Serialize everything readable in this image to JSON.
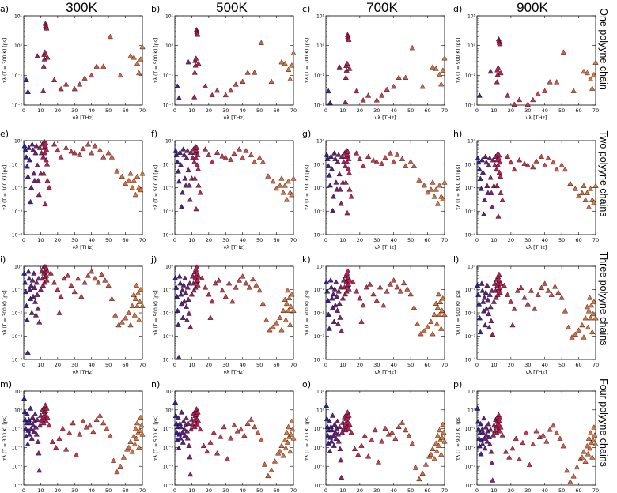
{
  "figure": {
    "column_titles": [
      "300K",
      "500K",
      "700K",
      "900K"
    ],
    "row_titles": [
      "One polyyne chain",
      "Two polyyne chains",
      "Three polyyne chains",
      "Four polyyne chains"
    ],
    "xlabel": "νλ [THz]",
    "xticks": [
      0,
      10,
      20,
      30,
      40,
      50,
      60,
      70
    ],
    "ytick_labels": {
      "row1": [
        "10⁻²",
        "10⁻¹",
        "10⁰",
        "10¹"
      ],
      "other": [
        "10⁻⁴",
        "10⁻³",
        "10⁻²",
        "10⁻¹",
        "10⁰"
      ],
      "row4": [
        "10⁻⁴",
        "10⁻³",
        "10⁻²",
        "10⁻¹",
        "10⁰",
        "10¹"
      ]
    },
    "colors": {
      "low": "#2c1fa0",
      "mid": "#c4204e",
      "high": "#e07a3a",
      "edge": "#000000"
    }
  },
  "chart_data": [
    {
      "panel": "a",
      "type": "scatter",
      "title": "a)",
      "ylabel": "τλ (T = 300 K) [ps]",
      "xlim": [
        0,
        70
      ],
      "ylog_exp": [
        -2,
        1
      ],
      "temperature": 300,
      "n_chains": 1
    },
    {
      "panel": "b",
      "type": "scatter",
      "title": "b)",
      "ylabel": "τλ (T = 500 K) [ps]",
      "xlim": [
        0,
        70
      ],
      "ylog_exp": [
        -2,
        1
      ],
      "temperature": 500,
      "n_chains": 1
    },
    {
      "panel": "c",
      "type": "scatter",
      "title": "c)",
      "ylabel": "τλ (T = 700 K) [ps]",
      "xlim": [
        0,
        70
      ],
      "ylog_exp": [
        -2,
        1
      ],
      "temperature": 700,
      "n_chains": 1
    },
    {
      "panel": "d",
      "type": "scatter",
      "title": "d)",
      "ylabel": "τλ (T = 900 K) [ps]",
      "xlim": [
        0,
        70
      ],
      "ylog_exp": [
        -2,
        1
      ],
      "temperature": 900,
      "n_chains": 1
    },
    {
      "panel": "e",
      "type": "scatter",
      "title": "e)",
      "ylabel": "τλ (T = 300 K) [ps]",
      "xlim": [
        0,
        70
      ],
      "ylog_exp": [
        -4,
        0
      ],
      "temperature": 300,
      "n_chains": 2
    },
    {
      "panel": "f",
      "type": "scatter",
      "title": "f)",
      "ylabel": "τλ (T = 500 K) [ps]",
      "xlim": [
        0,
        70
      ],
      "ylog_exp": [
        -4,
        0
      ],
      "temperature": 500,
      "n_chains": 2
    },
    {
      "panel": "g",
      "type": "scatter",
      "title": "g)",
      "ylabel": "τλ (T = 700 K) [ps]",
      "xlim": [
        0,
        70
      ],
      "ylog_exp": [
        -4,
        0
      ],
      "temperature": 700,
      "n_chains": 2
    },
    {
      "panel": "h",
      "type": "scatter",
      "title": "h)",
      "ylabel": "τλ (T = 900 K) [ps]",
      "xlim": [
        0,
        70
      ],
      "ylog_exp": [
        -4,
        0
      ],
      "temperature": 900,
      "n_chains": 2
    },
    {
      "panel": "i",
      "type": "scatter",
      "title": "i)",
      "ylabel": "τλ (T = 300 K) [ps]",
      "xlim": [
        0,
        70
      ],
      "ylog_exp": [
        -4,
        0
      ],
      "temperature": 300,
      "n_chains": 3
    },
    {
      "panel": "j",
      "type": "scatter",
      "title": "j)",
      "ylabel": "τλ (T = 500 K) [ps]",
      "xlim": [
        0,
        70
      ],
      "ylog_exp": [
        -4,
        0
      ],
      "temperature": 500,
      "n_chains": 3
    },
    {
      "panel": "k",
      "type": "scatter",
      "title": "k)",
      "ylabel": "τλ (T = 700 K) [ps]",
      "xlim": [
        0,
        70
      ],
      "ylog_exp": [
        -4,
        0
      ],
      "temperature": 700,
      "n_chains": 3
    },
    {
      "panel": "l",
      "type": "scatter",
      "title": "l)",
      "ylabel": "τλ (T = 900 K) [ps]",
      "xlim": [
        0,
        70
      ],
      "ylog_exp": [
        -4,
        0
      ],
      "temperature": 900,
      "n_chains": 3
    },
    {
      "panel": "m",
      "type": "scatter",
      "title": "m)",
      "ylabel": "τλ (T = 300 K) [ps]",
      "xlim": [
        0,
        70
      ],
      "ylog_exp": [
        -4,
        1
      ],
      "temperature": 300,
      "n_chains": 4
    },
    {
      "panel": "n",
      "type": "scatter",
      "title": "n)",
      "ylabel": "τλ (T = 500 K) [ps]",
      "xlim": [
        0,
        70
      ],
      "ylog_exp": [
        -4,
        1
      ],
      "temperature": 500,
      "n_chains": 4
    },
    {
      "panel": "o",
      "type": "scatter",
      "title": "o)",
      "ylabel": "τλ (T = 700 K) [ps]",
      "xlim": [
        0,
        70
      ],
      "ylog_exp": [
        -4,
        1
      ],
      "temperature": 700,
      "n_chains": 4
    },
    {
      "panel": "p",
      "type": "scatter",
      "title": "p)",
      "ylabel": "τλ (T = 900 K) [ps]",
      "xlim": [
        0,
        70
      ],
      "ylog_exp": [
        -4,
        1
      ],
      "temperature": 900,
      "n_chains": 4
    }
  ],
  "base_points": {
    "one_chain": [
      [
        1.5,
        0.07
      ],
      [
        2.5,
        0.028
      ],
      [
        8,
        0.45
      ],
      [
        11.5,
        0.03
      ],
      [
        11.8,
        0.2
      ],
      [
        12,
        0.5
      ],
      [
        12.2,
        0.35
      ],
      [
        12.5,
        0.6
      ],
      [
        12.8,
        5.5
      ],
      [
        13,
        4.8
      ],
      [
        13.2,
        4.2
      ],
      [
        13.5,
        3.8
      ],
      [
        14,
        0.4
      ],
      [
        18,
        0.07
      ],
      [
        22,
        0.035
      ],
      [
        25,
        0.05
      ],
      [
        30,
        0.035
      ],
      [
        33,
        0.05
      ],
      [
        36,
        0.08
      ],
      [
        40,
        0.1
      ],
      [
        43,
        0.2
      ],
      [
        47,
        0.2
      ],
      [
        51,
        2.0
      ],
      [
        57,
        0.1
      ],
      [
        63,
        0.45
      ],
      [
        65,
        0.4
      ],
      [
        67,
        0.25
      ],
      [
        68,
        0.12
      ],
      [
        69,
        0.35
      ],
      [
        70,
        0.9
      ]
    ],
    "two_chains": [
      [
        0.5,
        0.6
      ],
      [
        1,
        0.4
      ],
      [
        1.5,
        0.2
      ],
      [
        2,
        0.08
      ],
      [
        2.5,
        0.03
      ],
      [
        3,
        0.5
      ],
      [
        3.5,
        0.15
      ],
      [
        4,
        0.0025
      ],
      [
        4.5,
        0.01
      ],
      [
        5,
        0.7
      ],
      [
        5.5,
        0.4
      ],
      [
        6,
        0.04
      ],
      [
        6.5,
        0.02
      ],
      [
        7,
        0.3
      ],
      [
        7.5,
        0.6
      ],
      [
        8,
        0.09
      ],
      [
        8.5,
        0.02
      ],
      [
        9,
        0.005
      ],
      [
        9.5,
        0.5
      ],
      [
        10,
        0.04
      ],
      [
        10.5,
        0.3
      ],
      [
        11,
        0.7
      ],
      [
        11.5,
        0.2
      ],
      [
        11.8,
        0.04
      ],
      [
        12,
        0.5
      ],
      [
        12.2,
        0.9
      ],
      [
        12.4,
        0.3
      ],
      [
        12.6,
        0.002
      ],
      [
        12.8,
        0.6
      ],
      [
        13,
        0.8
      ],
      [
        13.2,
        0.15
      ],
      [
        13.5,
        0.4
      ],
      [
        13.8,
        0.1
      ],
      [
        14,
        0.02
      ],
      [
        15,
        0.01
      ],
      [
        18,
        0.7
      ],
      [
        20,
        0.4
      ],
      [
        22,
        0.2
      ],
      [
        25,
        0.5
      ],
      [
        28,
        0.35
      ],
      [
        30,
        0.3
      ],
      [
        33,
        0.25
      ],
      [
        35,
        0.45
      ],
      [
        38,
        0.7
      ],
      [
        40,
        0.3
      ],
      [
        42,
        0.6
      ],
      [
        45,
        0.4
      ],
      [
        47,
        0.2
      ],
      [
        50,
        0.3
      ],
      [
        52,
        0.2
      ],
      [
        55,
        0.05
      ],
      [
        58,
        0.03
      ],
      [
        60,
        0.015
      ],
      [
        62,
        0.02
      ],
      [
        63,
        0.04
      ],
      [
        64,
        0.01
      ],
      [
        65,
        0.02
      ],
      [
        66,
        0.005
      ],
      [
        67,
        0.03
      ],
      [
        68,
        0.01
      ],
      [
        69,
        0.008
      ],
      [
        70,
        0.04
      ]
    ],
    "three_chains": [
      [
        0.3,
        0.5
      ],
      [
        0.8,
        0.2
      ],
      [
        1.2,
        0.08
      ],
      [
        1.6,
        0.02
      ],
      [
        2,
        0.005
      ],
      [
        2.4,
        0.0002
      ],
      [
        2.8,
        0.6
      ],
      [
        3.2,
        0.3
      ],
      [
        3.6,
        0.1
      ],
      [
        4,
        0.04
      ],
      [
        4.4,
        0.15
      ],
      [
        4.8,
        0.01
      ],
      [
        5.2,
        0.25
      ],
      [
        5.6,
        0.05
      ],
      [
        6,
        0.5
      ],
      [
        6.4,
        0.12
      ],
      [
        6.8,
        0.03
      ],
      [
        7.2,
        0.008
      ],
      [
        7.6,
        0.2
      ],
      [
        8,
        0.06
      ],
      [
        8.4,
        0.015
      ],
      [
        8.8,
        0.3
      ],
      [
        9.2,
        0.004
      ],
      [
        10,
        0.1
      ],
      [
        10.5,
        0.6
      ],
      [
        11,
        0.3
      ],
      [
        11.4,
        0.15
      ],
      [
        11.7,
        0.9
      ],
      [
        12,
        0.5
      ],
      [
        12.2,
        0.2
      ],
      [
        12.4,
        1.2
      ],
      [
        12.6,
        0.7
      ],
      [
        12.8,
        0.35
      ],
      [
        13,
        1.5
      ],
      [
        13.2,
        0.8
      ],
      [
        13.4,
        0.4
      ],
      [
        13.6,
        0.25
      ],
      [
        14,
        0.6
      ],
      [
        16,
        0.5
      ],
      [
        18,
        0.2
      ],
      [
        20,
        0.1
      ],
      [
        21,
        0.01
      ],
      [
        22,
        0.05
      ],
      [
        24,
        0.3
      ],
      [
        26,
        0.4
      ],
      [
        28,
        0.15
      ],
      [
        30,
        0.08
      ],
      [
        32,
        0.3
      ],
      [
        34,
        0.05
      ],
      [
        36,
        0.2
      ],
      [
        38,
        0.4
      ],
      [
        40,
        0.6
      ],
      [
        42,
        0.3
      ],
      [
        44,
        0.2
      ],
      [
        46,
        0.45
      ],
      [
        48,
        0.25
      ],
      [
        50,
        0.15
      ],
      [
        52,
        0.04
      ],
      [
        54,
        0.008
      ],
      [
        56,
        0.003
      ],
      [
        58,
        0.004
      ],
      [
        60,
        0.006
      ],
      [
        62,
        0.01
      ],
      [
        63,
        0.003
      ],
      [
        64,
        0.02
      ],
      [
        65,
        0.06
      ],
      [
        65.5,
        0.008
      ],
      [
        66,
        0.04
      ],
      [
        66.5,
        0.15
      ],
      [
        67,
        0.02
      ],
      [
        67.5,
        0.07
      ],
      [
        68,
        0.005
      ],
      [
        68.5,
        0.03
      ],
      [
        69,
        0.1
      ],
      [
        70,
        0.02
      ]
    ],
    "four_chains": [
      [
        0.3,
        4
      ],
      [
        0.6,
        0.8
      ],
      [
        0.9,
        0.3
      ],
      [
        1.2,
        0.1
      ],
      [
        1.5,
        0.04
      ],
      [
        1.8,
        0.2
      ],
      [
        2.1,
        0.6
      ],
      [
        2.4,
        0.015
      ],
      [
        2.7,
        0.08
      ],
      [
        3,
        0.3
      ],
      [
        3.3,
        0.05
      ],
      [
        3.6,
        0.2
      ],
      [
        4,
        1.2
      ],
      [
        4.4,
        0.1
      ],
      [
        4.8,
        0.03
      ],
      [
        5.2,
        0.4
      ],
      [
        5.6,
        0.15
      ],
      [
        6,
        0.07
      ],
      [
        6.4,
        0.25
      ],
      [
        6.8,
        0.6
      ],
      [
        7.2,
        0.12
      ],
      [
        7.6,
        0.05
      ],
      [
        8,
        0.3
      ],
      [
        8.4,
        0.02
      ],
      [
        8.8,
        0.005
      ],
      [
        9.2,
        0.0006
      ],
      [
        9.6,
        0.15
      ],
      [
        10,
        0.5
      ],
      [
        10.5,
        0.25
      ],
      [
        11,
        1
      ],
      [
        11.4,
        0.4
      ],
      [
        11.7,
        0.2
      ],
      [
        12,
        0.8
      ],
      [
        12.2,
        1.4
      ],
      [
        12.4,
        0.6
      ],
      [
        12.6,
        0.3
      ],
      [
        12.8,
        1.8
      ],
      [
        13,
        0.9
      ],
      [
        13.2,
        0.5
      ],
      [
        13.4,
        0.25
      ],
      [
        13.6,
        1.2
      ],
      [
        14,
        0.4
      ],
      [
        15,
        0.15
      ],
      [
        17,
        0.02
      ],
      [
        19,
        0.01
      ],
      [
        21,
        0.03
      ],
      [
        23,
        0.1
      ],
      [
        25,
        0.008
      ],
      [
        27,
        0.06
      ],
      [
        29,
        0.2
      ],
      [
        31,
        0.004
      ],
      [
        33,
        0.05
      ],
      [
        35,
        0.25
      ],
      [
        37,
        0.12
      ],
      [
        39,
        0.15
      ],
      [
        41,
        0.07
      ],
      [
        43,
        0.3
      ],
      [
        45,
        0.5
      ],
      [
        47,
        0.2
      ],
      [
        49,
        0.1
      ],
      [
        51,
        0.04
      ],
      [
        53,
        0.002
      ],
      [
        55,
        0.0005
      ],
      [
        57,
        0.001
      ],
      [
        59,
        0.003
      ],
      [
        61,
        0.008
      ],
      [
        62,
        0.01
      ],
      [
        63,
        0.02
      ],
      [
        64,
        0.006
      ],
      [
        65,
        0.04
      ],
      [
        65.5,
        0.015
      ],
      [
        66,
        0.1
      ],
      [
        66.5,
        0.03
      ],
      [
        67,
        0.2
      ],
      [
        67.5,
        0.06
      ],
      [
        68,
        0.01
      ],
      [
        68.5,
        0.08
      ],
      [
        69,
        0.4
      ],
      [
        69.5,
        0.15
      ],
      [
        70,
        0.05
      ]
    ]
  }
}
